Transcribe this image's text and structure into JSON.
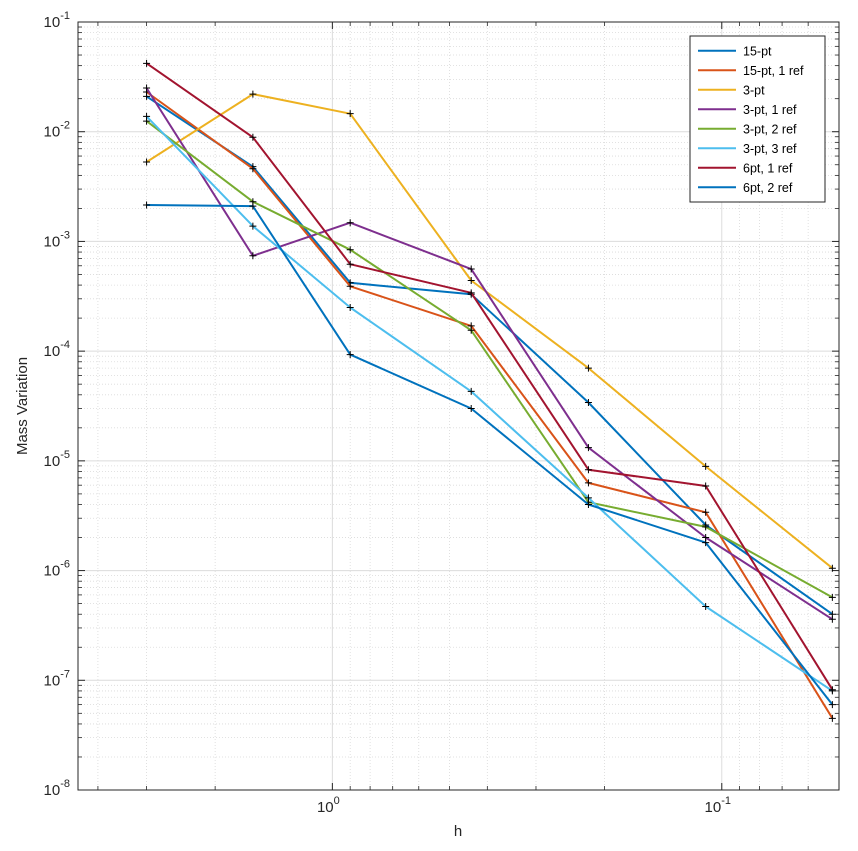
{
  "chart_data": {
    "type": "line",
    "title": "",
    "xlabel": "h",
    "ylabel": "Mass Variation",
    "xscale": "log",
    "yscale": "log",
    "xdir": "reverse",
    "xlim": [
      0.05,
      4.5
    ],
    "ylim": [
      1e-08,
      0.1
    ],
    "grid": true,
    "minor_grid": true,
    "legend_location": "top-right",
    "x": [
      3.0,
      1.6,
      0.9,
      0.44,
      0.22,
      0.11,
      0.052
    ],
    "x_ticks": [
      {
        "value": 1.0,
        "base": "10",
        "exp": "0"
      },
      {
        "value": 0.1,
        "base": "10",
        "exp": "-1"
      }
    ],
    "y_ticks": [
      {
        "value": 1e-08,
        "base": "10",
        "exp": "-8"
      },
      {
        "value": 1e-07,
        "base": "10",
        "exp": "-7"
      },
      {
        "value": 1e-06,
        "base": "10",
        "exp": "-6"
      },
      {
        "value": 1e-05,
        "base": "10",
        "exp": "-5"
      },
      {
        "value": 0.0001,
        "base": "10",
        "exp": "-4"
      },
      {
        "value": 0.001,
        "base": "10",
        "exp": "-3"
      },
      {
        "value": 0.01,
        "base": "10",
        "exp": "-2"
      },
      {
        "value": 0.1,
        "base": "10",
        "exp": "-1"
      }
    ],
    "marker": "+",
    "series": [
      {
        "name": "15-pt",
        "color": "#0072BD",
        "values": [
          0.021,
          0.0048,
          0.00042,
          0.00033,
          3.4e-05,
          2.6e-06,
          4e-07
        ]
      },
      {
        "name": "15-pt, 1 ref",
        "color": "#D95319",
        "values": [
          0.023,
          0.0046,
          0.00039,
          0.00017,
          6.3e-06,
          3.4e-06,
          4.5e-08
        ]
      },
      {
        "name": "3-pt",
        "color": "#EDB120",
        "values": [
          0.0053,
          0.022,
          0.0146,
          0.00044,
          7e-05,
          8.9e-06,
          1.05e-06
        ]
      },
      {
        "name": "3-pt, 1 ref",
        "color": "#7E2F8E",
        "values": [
          0.025,
          0.00074,
          0.00148,
          0.00056,
          1.32e-05,
          2e-06,
          3.6e-07
        ]
      },
      {
        "name": "3-pt, 2 ref",
        "color": "#77AC30",
        "values": [
          0.0125,
          0.0023,
          0.00084,
          0.000155,
          4.2e-06,
          2.5e-06,
          5.7e-07
        ]
      },
      {
        "name": "3-pt, 3 ref",
        "color": "#4DBEEE",
        "values": [
          0.0138,
          0.00138,
          0.00025,
          4.3e-05,
          4.6e-06,
          4.7e-07,
          8e-08
        ]
      },
      {
        "name": "6pt, 1 ref",
        "color": "#A2142F",
        "values": [
          0.042,
          0.0089,
          0.00062,
          0.00034,
          8.3e-06,
          5.9e-06,
          8.2e-08
        ]
      },
      {
        "name": "6pt, 2 ref",
        "color": "#0072BD",
        "values": [
          0.00215,
          0.0021,
          9.3e-05,
          3e-05,
          4e-06,
          1.8e-06,
          6e-08
        ]
      }
    ]
  }
}
